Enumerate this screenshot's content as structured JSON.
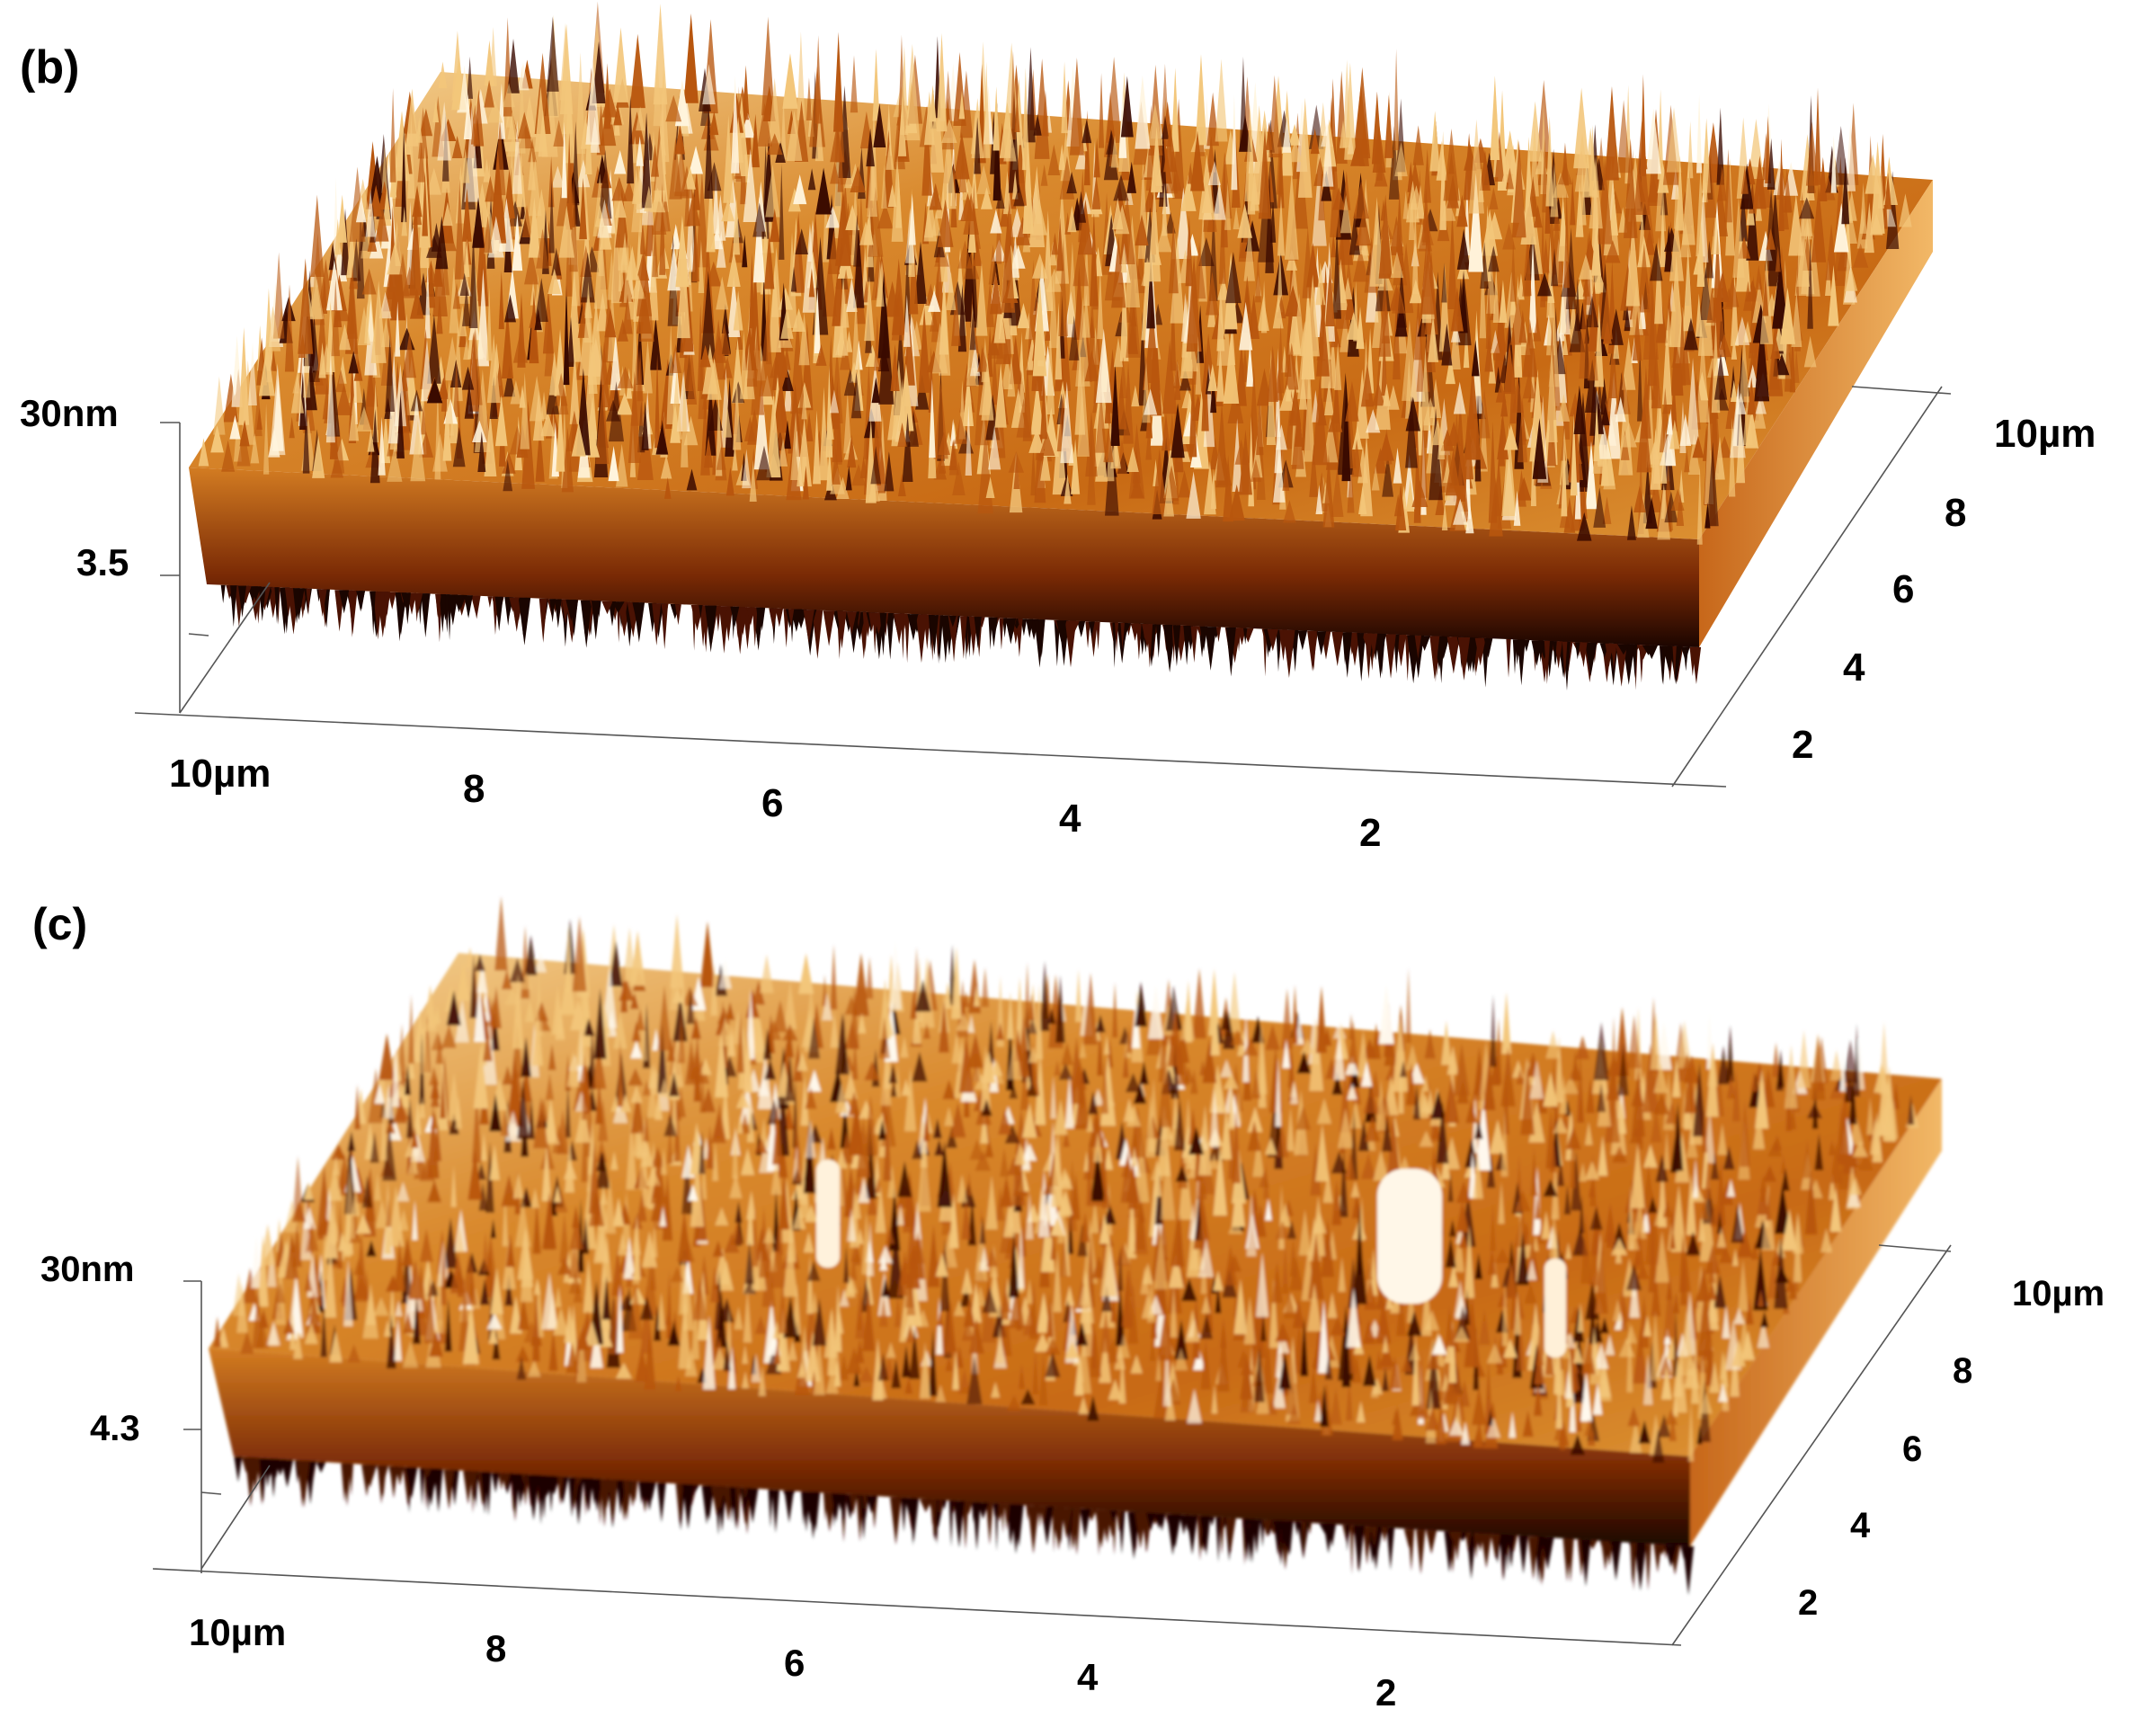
{
  "figure": {
    "panels": [
      {
        "id": "b",
        "label": "(b)",
        "z_ticks": [
          "30nm",
          "3.5"
        ],
        "x_ticks": [
          "10µm",
          "8",
          "6",
          "4",
          "2"
        ],
        "y_ticks": [
          "10µm",
          "8",
          "6",
          "4",
          "2"
        ],
        "surface_colors": {
          "low": "#3a0a00",
          "mid": "#b8560e",
          "high": "#f3c67a",
          "peak": "#fff4dc"
        }
      },
      {
        "id": "c",
        "label": "(c)",
        "z_ticks": [
          "30nm",
          "4.3"
        ],
        "x_ticks": [
          "10µm",
          "8",
          "6",
          "4",
          "2"
        ],
        "y_ticks": [
          "10µm",
          "8",
          "6",
          "4",
          "2"
        ],
        "surface_colors": {
          "low": "#3a0a00",
          "mid": "#b8560e",
          "high": "#f3c67a",
          "peak": "#fffaf0"
        }
      }
    ]
  }
}
